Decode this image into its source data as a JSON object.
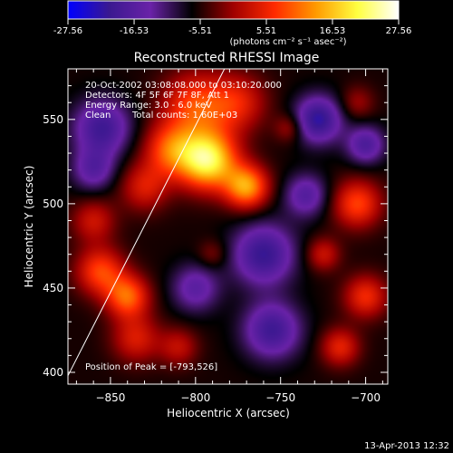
{
  "colorbar": {
    "ticks": [
      "-27.56",
      "-16.53",
      "-5.51",
      "5.51",
      "16.53",
      "27.56"
    ],
    "tick_values": [
      -27.56,
      -16.53,
      -5.51,
      5.51,
      16.53,
      27.56
    ],
    "range": [
      -27.56,
      27.56
    ],
    "unit": "(photons cm⁻² s⁻¹ asec⁻²)"
  },
  "annotations": {
    "time_range": "20-Oct-2002 03:08:08.000 to 03:10:20.000",
    "detectors": "Detectors: 4F 5F 6F 7F 8F, Att 1",
    "energy_range": "Energy Range: 3.0 - 6.0 keV",
    "clean": "Clean",
    "total_counts": "Total counts: 1.60E+03",
    "peak": "Position of Peak = [-793,526]"
  },
  "footer": {
    "date": "13-Apr-2013 12:32"
  },
  "chart_data": {
    "type": "heatmap",
    "title": "Reconstructed RHESSI Image",
    "xlabel": "Heliocentric X (arcsec)",
    "ylabel": "Heliocentric Y (arcsec)",
    "xlim": [
      -875,
      -687
    ],
    "ylim": [
      393,
      580
    ],
    "x_ticks": [
      -850,
      -800,
      -750,
      -700
    ],
    "y_ticks": [
      400,
      450,
      500,
      550
    ],
    "x_tick_labels": [
      "−850",
      "−800",
      "−750",
      "−700"
    ],
    "y_tick_labels": [
      "400",
      "450",
      "500",
      "550"
    ],
    "value_range": [
      -27.56,
      27.56
    ],
    "colormap": [
      "#0000ff",
      "#3a1890",
      "#6a22a8",
      "#000000",
      "#a00000",
      "#ff2a00",
      "#ff9a00",
      "#ffff40",
      "#ffffff"
    ],
    "peak": {
      "x": -793,
      "y": 526
    },
    "limb_line": [
      [
        -875,
        398
      ],
      [
        -783,
        580
      ]
    ],
    "sources": [
      {
        "x": -793,
        "y": 526,
        "sigma": 12,
        "amp": 27.5
      },
      {
        "x": -770,
        "y": 510,
        "sigma": 9,
        "amp": 20
      },
      {
        "x": -815,
        "y": 532,
        "sigma": 11,
        "amp": 14
      },
      {
        "x": -800,
        "y": 558,
        "sigma": 14,
        "amp": 14
      },
      {
        "x": -775,
        "y": 560,
        "sigma": 12,
        "amp": 10
      },
      {
        "x": -830,
        "y": 510,
        "sigma": 10,
        "amp": 10
      },
      {
        "x": -856,
        "y": 460,
        "sigma": 10,
        "amp": 14
      },
      {
        "x": -840,
        "y": 445,
        "sigma": 9,
        "amp": 16
      },
      {
        "x": -835,
        "y": 420,
        "sigma": 10,
        "amp": 10
      },
      {
        "x": -860,
        "y": 490,
        "sigma": 9,
        "amp": 9
      },
      {
        "x": -810,
        "y": 415,
        "sigma": 8,
        "amp": 8
      },
      {
        "x": -790,
        "y": 470,
        "sigma": 6,
        "amp": 5
      },
      {
        "x": -705,
        "y": 500,
        "sigma": 10,
        "amp": 14
      },
      {
        "x": -700,
        "y": 445,
        "sigma": 9,
        "amp": 12
      },
      {
        "x": -715,
        "y": 415,
        "sigma": 8,
        "amp": 11
      },
      {
        "x": -725,
        "y": 470,
        "sigma": 7,
        "amp": 9
      },
      {
        "x": -745,
        "y": 545,
        "sigma": 6,
        "amp": 7
      },
      {
        "x": -705,
        "y": 560,
        "sigma": 7,
        "amp": 6
      },
      {
        "x": -760,
        "y": 470,
        "sigma": 13,
        "amp": -15
      },
      {
        "x": -755,
        "y": 425,
        "sigma": 12,
        "amp": -14
      },
      {
        "x": -728,
        "y": 550,
        "sigma": 10,
        "amp": -16
      },
      {
        "x": -700,
        "y": 535,
        "sigma": 8,
        "amp": -12
      },
      {
        "x": -855,
        "y": 545,
        "sigma": 12,
        "amp": -14
      },
      {
        "x": -860,
        "y": 520,
        "sigma": 9,
        "amp": -10
      },
      {
        "x": -800,
        "y": 450,
        "sigma": 10,
        "amp": -10
      },
      {
        "x": -735,
        "y": 505,
        "sigma": 9,
        "amp": -11
      }
    ]
  }
}
